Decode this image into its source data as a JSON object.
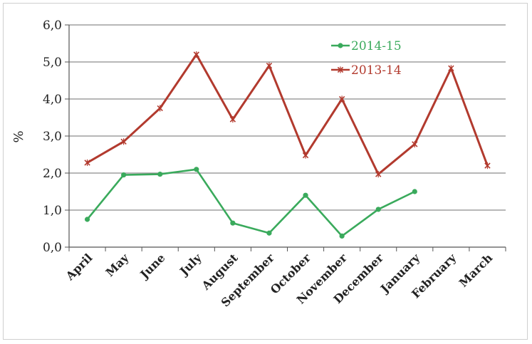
{
  "chart_data": {
    "type": "line",
    "ylabel": "%",
    "ylim": [
      0,
      6
    ],
    "yticks": [
      "0,0",
      "1,0",
      "2,0",
      "3,0",
      "4,0",
      "5,0",
      "6,0"
    ],
    "categories": [
      "April",
      "May",
      "June",
      "July",
      "August",
      "September",
      "October",
      "November",
      "December",
      "January",
      "February",
      "March"
    ],
    "grid": true,
    "legend_position": "top-right",
    "series": [
      {
        "name": "2014-15",
        "color": "#3aaa5c",
        "marker": "circle",
        "values": [
          0.75,
          1.95,
          1.97,
          2.1,
          0.65,
          0.38,
          1.4,
          0.3,
          1.02,
          1.5,
          null,
          null
        ]
      },
      {
        "name": "2013-14",
        "color": "#b23a2e",
        "marker": "star",
        "values": [
          2.28,
          2.85,
          3.75,
          5.2,
          3.45,
          4.9,
          2.48,
          4.0,
          1.97,
          2.78,
          4.83,
          2.2
        ]
      }
    ]
  }
}
